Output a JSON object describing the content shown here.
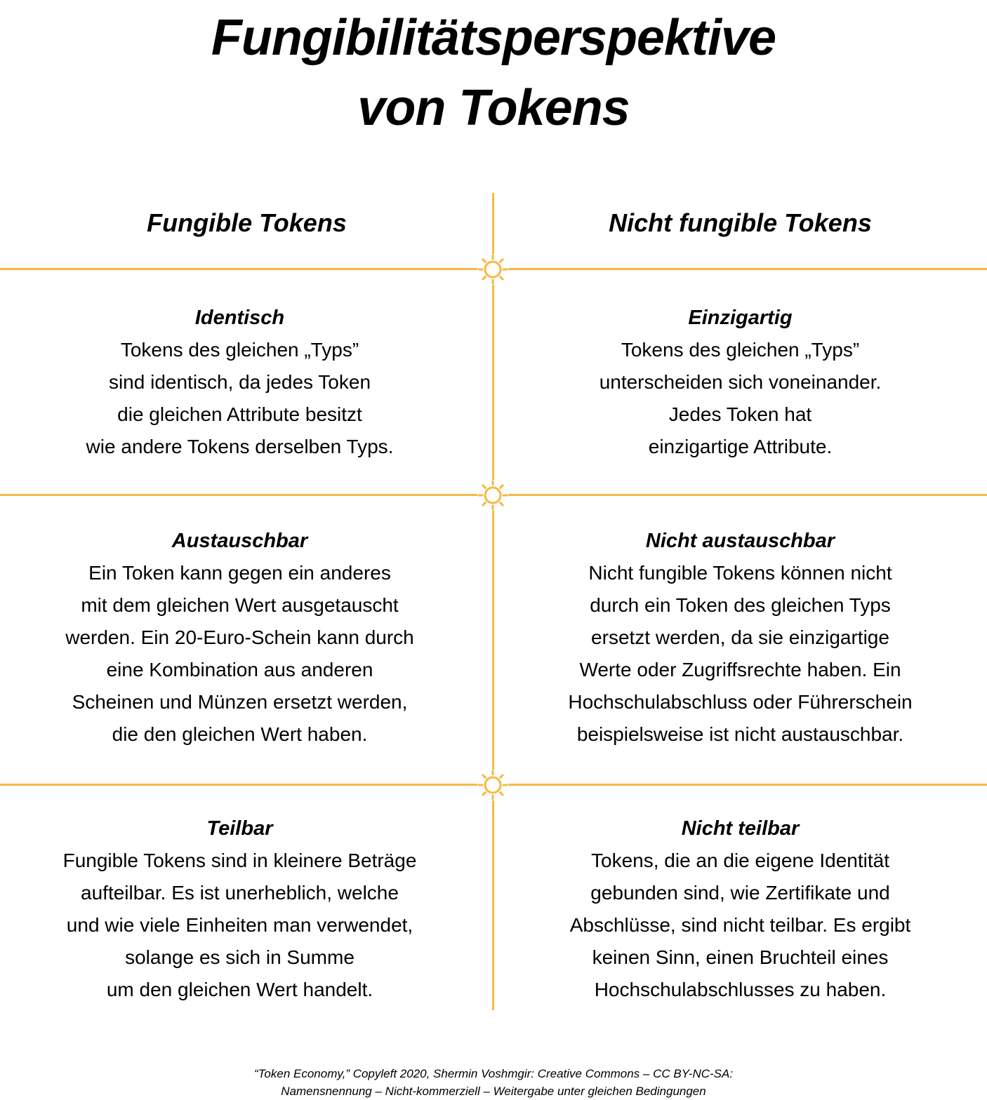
{
  "title": {
    "line1": "Fungibilitätsperspektive",
    "line2": "von Tokens"
  },
  "columns": {
    "left": "Fungible Tokens",
    "right": "Nicht fungible Tokens"
  },
  "rows": [
    {
      "left": {
        "heading": "Identisch",
        "text": "Tokens des gleichen „Typs”\nsind identisch, da jedes Token\ndie gleichen Attribute besitzt\nwie andere Tokens derselben Typs."
      },
      "right": {
        "heading": "Einzigartig",
        "text": "Tokens des gleichen „Typs”\nunterscheiden sich voneinander.\nJedes Token hat\neinzigartige Attribute."
      }
    },
    {
      "left": {
        "heading": "Austauschbar",
        "text": "Ein Token kann gegen ein anderes\nmit dem gleichen Wert ausgetauscht\nwerden. Ein 20-Euro-Schein kann durch\neine Kombination aus anderen\nScheinen und Münzen ersetzt werden,\ndie den gleichen Wert haben."
      },
      "right": {
        "heading": "Nicht austauschbar",
        "text": "Nicht fungible Tokens können nicht\ndurch ein Token des gleichen Typs\nersetzt werden, da sie einzigartige\nWerte oder Zugriffsrechte haben. Ein\nHochschulabschluss oder Führerschein\nbeispielsweise ist nicht austauschbar."
      }
    },
    {
      "left": {
        "heading": "Teilbar",
        "text": "Fungible Tokens sind in kleinere Beträge\naufteilbar. Es ist unerheblich, welche\nund wie viele Einheiten man verwendet,\nsolange es sich in Summe\num den gleichen Wert handelt."
      },
      "right": {
        "heading": "Nicht teilbar",
        "text": "Tokens, die an die eigene Identität\ngebunden sind, wie Zertifikate und\nAbschlüsse, sind nicht teilbar. Es ergibt\nkeinen Sinn, einen Bruchteil eines\nHochschulabschlusses zu haben."
      }
    }
  ],
  "footer": {
    "line1": "“Token Economy,” Copyleft 2020, Shermin Voshmgir: Creative Commons – CC BY-NC-SA:",
    "line2": "Namensnennung – Nicht-kommerziell – Weitergabe unter gleichen Bedingungen"
  },
  "colors": {
    "accent": "#f5b942",
    "text": "#000000",
    "background": "#ffffff"
  },
  "icons": [
    "sun-icon",
    "sun-icon",
    "sun-icon"
  ]
}
